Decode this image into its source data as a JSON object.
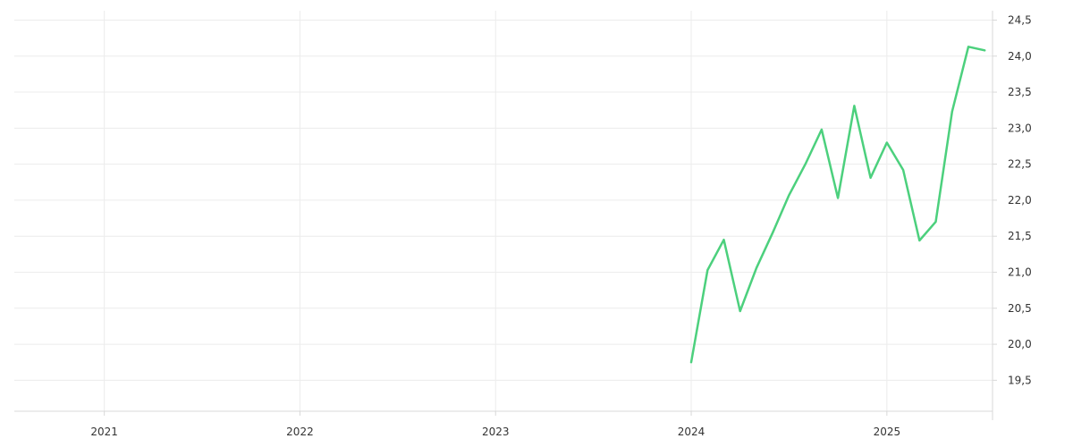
{
  "chart_data": {
    "type": "line",
    "title": "",
    "xlabel": "",
    "ylabel": "",
    "grid": true,
    "legend": "none",
    "x_axis": {
      "unit": "year",
      "range": [
        2020.54,
        2025.54
      ],
      "ticks": [
        {
          "value": 2021,
          "label": "2021"
        },
        {
          "value": 2022,
          "label": "2022"
        },
        {
          "value": 2023,
          "label": "2023"
        },
        {
          "value": 2024,
          "label": "2024"
        },
        {
          "value": 2025,
          "label": "2025"
        }
      ]
    },
    "y_axis": {
      "position": "right",
      "range": [
        19.07,
        24.63
      ],
      "ticks": [
        {
          "value": 19.5,
          "label": "19,5"
        },
        {
          "value": 20.0,
          "label": "20,0"
        },
        {
          "value": 20.5,
          "label": "20,5"
        },
        {
          "value": 21.0,
          "label": "21,0"
        },
        {
          "value": 21.5,
          "label": "21,5"
        },
        {
          "value": 22.0,
          "label": "22,0"
        },
        {
          "value": 22.5,
          "label": "22,5"
        },
        {
          "value": 23.0,
          "label": "23,0"
        },
        {
          "value": 23.5,
          "label": "23,5"
        },
        {
          "value": 24.0,
          "label": "24,0"
        },
        {
          "value": 24.5,
          "label": "24,5"
        }
      ]
    },
    "series": [
      {
        "color": "#4cd07d",
        "points": [
          {
            "x": "2024-01",
            "y": 19.75
          },
          {
            "x": "2024-02",
            "y": 21.03
          },
          {
            "x": "2024-03",
            "y": 21.45
          },
          {
            "x": "2024-04",
            "y": 20.46
          },
          {
            "x": "2024-05",
            "y": 21.06
          },
          {
            "x": "2024-06",
            "y": 21.55
          },
          {
            "x": "2024-07",
            "y": 22.07
          },
          {
            "x": "2024-08",
            "y": 22.5
          },
          {
            "x": "2024-09",
            "y": 22.98
          },
          {
            "x": "2024-10",
            "y": 22.03
          },
          {
            "x": "2024-11",
            "y": 23.31
          },
          {
            "x": "2024-12",
            "y": 22.31
          },
          {
            "x": "2025-01",
            "y": 22.8
          },
          {
            "x": "2025-02",
            "y": 22.42
          },
          {
            "x": "2025-03",
            "y": 21.44
          },
          {
            "x": "2025-04",
            "y": 21.7
          },
          {
            "x": "2025-05",
            "y": 23.23
          },
          {
            "x": "2025-06",
            "y": 24.13
          },
          {
            "x": "2025-07",
            "y": 24.08
          }
        ]
      }
    ]
  }
}
